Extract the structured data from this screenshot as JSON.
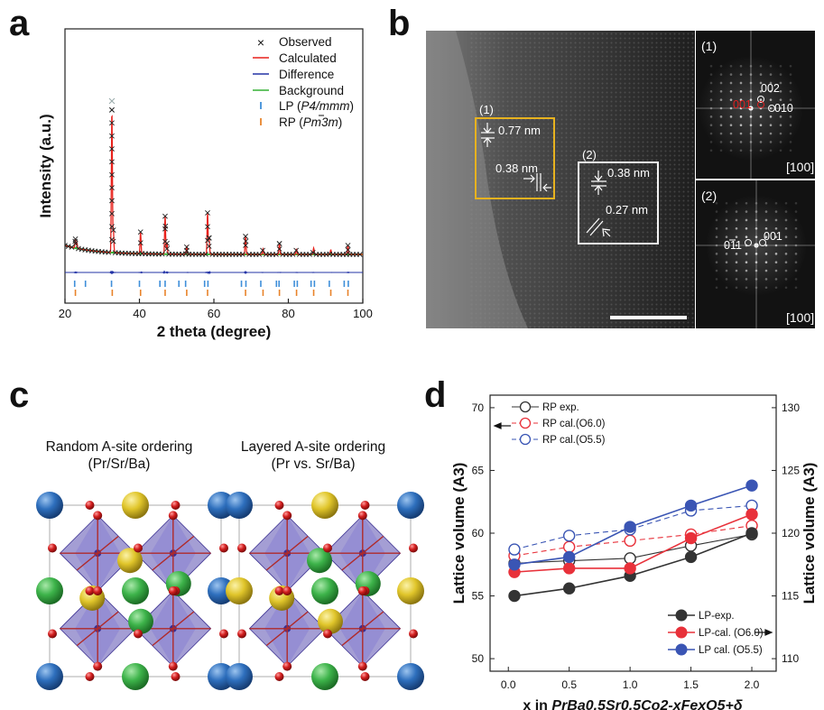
{
  "panels": {
    "a": "a",
    "b": "b",
    "c": "c",
    "d": "d"
  },
  "panel_a": {
    "ylabel": "Intensity (a.u.)",
    "xlabel": "2 theta (degree)",
    "xticks": [
      "20",
      "40",
      "60",
      "80",
      "100"
    ],
    "legend": {
      "observed": "Observed",
      "calculated": "Calculated",
      "difference": "Difference",
      "background": "Background",
      "lp_prefix": "LP (",
      "lp_group": "P4/mmm",
      "rp_prefix": "RP (",
      "rp_group": "Pm3m",
      "suffix": ")"
    },
    "colors": {
      "observed": "#222222",
      "calculated": "#e8211b",
      "difference": "#2333a6",
      "background": "#35b035",
      "lp": "#3f8fd9",
      "rp": "#e8832a"
    }
  },
  "panel_b": {
    "region1": "(1)",
    "region2": "(2)",
    "d1": "0.77 nm",
    "d2": "0.38 nm",
    "d3": "0.38 nm",
    "d4": "0.27 nm",
    "fft1_label": "(1)",
    "fft2_label": "(2)",
    "fft1_spots": {
      "s002": "002",
      "s010": "010",
      "s001": "001"
    },
    "fft2_spots": {
      "s001": "001",
      "s011": "011"
    },
    "zone1": "[100]",
    "zone2": "[100]"
  },
  "panel_c": {
    "left_title": "Random A-site ordering",
    "left_sub": "(Pr/Sr/Ba)",
    "right_title": "Layered A-site ordering",
    "right_sub": "(Pr vs. Sr/Ba)",
    "colors": {
      "pr": "#2e6fbd",
      "sr": "#3db34a",
      "ba": "#e0c52a",
      "o": "#d21e1e",
      "octa": "#5a4fb0"
    }
  },
  "chart_data": {
    "type": "line",
    "x": [
      0.05,
      0.5,
      1.0,
      1.5,
      2.0
    ],
    "xticks": [
      "0.0",
      "0.5",
      "1.0",
      "1.5",
      "2.0"
    ],
    "ylabel": "Lattice volume (A3)",
    "y2label": "Lattice volume (A3)",
    "ylim": [
      49,
      71
    ],
    "y2lim": [
      109,
      131
    ],
    "yticks": [
      "50",
      "55",
      "60",
      "65",
      "70"
    ],
    "y2ticks": [
      "110",
      "115",
      "120",
      "125",
      "130"
    ],
    "xlabel_prefix": "x in ",
    "xlabel_formula": "PrBa0.5Sr0.5Co2-xFexO5+δ",
    "series": [
      {
        "name": "RP exp.",
        "axis": "left",
        "color": "#333333",
        "marker": "open",
        "dash": false,
        "values": [
          57.6,
          57.8,
          58.0,
          59.0,
          59.9
        ]
      },
      {
        "name": "RP cal.(O6.0)",
        "axis": "left",
        "color": "#e8313a",
        "marker": "open",
        "dash": true,
        "values": [
          58.2,
          58.9,
          59.4,
          59.9,
          60.6
        ]
      },
      {
        "name": "RP cal.(O5.5)",
        "axis": "left",
        "color": "#3a55b4",
        "marker": "open",
        "dash": true,
        "values": [
          58.7,
          59.8,
          60.3,
          61.8,
          62.2
        ]
      },
      {
        "name": "LP-exp.",
        "axis": "right",
        "color": "#333333",
        "marker": "filled",
        "dash": false,
        "values": [
          115.0,
          115.6,
          116.6,
          118.1,
          120.0
        ]
      },
      {
        "name": "LP-cal. (O6.0)",
        "axis": "right",
        "color": "#e8313a",
        "marker": "filled",
        "dash": false,
        "values": [
          116.9,
          117.2,
          117.2,
          119.6,
          121.5
        ]
      },
      {
        "name": "LP cal. (O5.5)",
        "axis": "right",
        "color": "#3a55b4",
        "marker": "filled",
        "dash": false,
        "values": [
          117.5,
          118.1,
          120.5,
          122.2,
          123.8
        ]
      }
    ],
    "legend_top": [
      "RP exp.",
      "RP cal.(O6.0)",
      "RP cal.(O5.5)"
    ],
    "legend_bottom": [
      "LP-exp.",
      "LP-cal. (O6.0)",
      "LP cal. (O5.5)"
    ]
  }
}
